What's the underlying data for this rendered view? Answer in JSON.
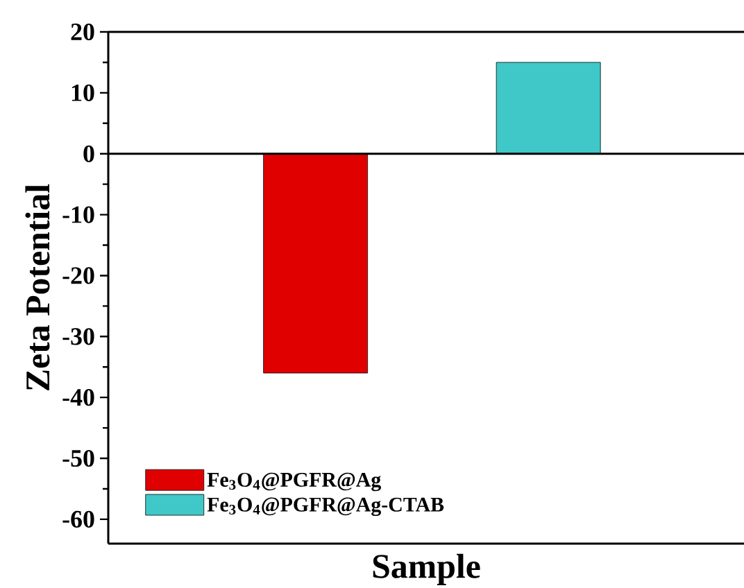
{
  "chart_data": {
    "type": "bar",
    "xlabel": "Sample",
    "ylabel": "Zeta Potential",
    "categories": [
      null,
      null
    ],
    "series": [
      {
        "name": "Fe$_{3}$O$_{4}$@PGFR@Ag",
        "color": "#e00000",
        "values": [
          -36,
          null
        ]
      },
      {
        "name": "Fe$_{3}$O$_{4}$@PGFR@Ag-CTAB",
        "color": "#40c8c8",
        "values": [
          null,
          15
        ]
      }
    ],
    "ylim": [
      -64,
      20
    ],
    "yticks": [
      -60,
      -50,
      -40,
      -30,
      -20,
      -10,
      0,
      10,
      20
    ],
    "ref_lines": [
      {
        "axis": "y",
        "value": 0
      }
    ],
    "legend": "bottom left",
    "grid": false
  }
}
